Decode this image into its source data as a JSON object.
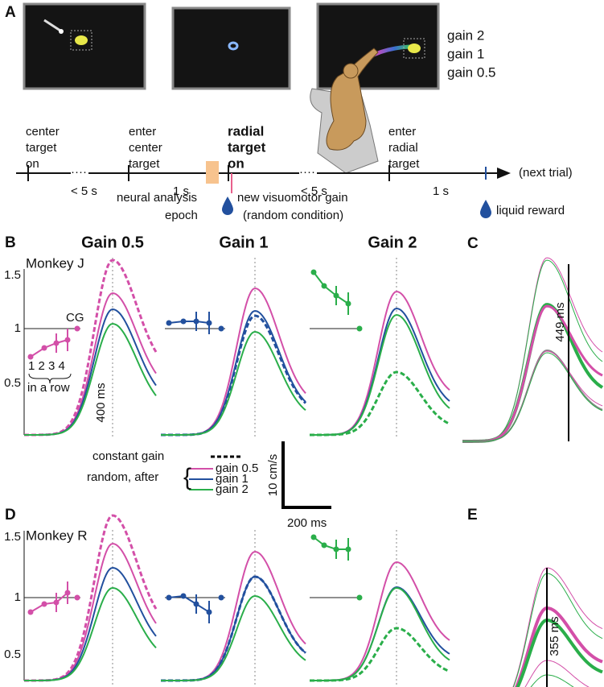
{
  "panel_a": {
    "label": "A",
    "legend": [
      "gain 2",
      "gain 1",
      "gain 0.5"
    ],
    "events": [
      {
        "lines": [
          "center",
          "target",
          "on"
        ]
      },
      {
        "lines": [
          "enter",
          "center",
          "target"
        ]
      },
      {
        "lines": [
          "radial",
          "target",
          "on"
        ]
      },
      {
        "lines": [
          "enter",
          "radial",
          "target"
        ]
      }
    ],
    "intervals": [
      "< 5 s",
      "1 s",
      "< 5 s",
      "1 s"
    ],
    "next_trial": "(next trial)",
    "neural_epoch": [
      "neural analysis",
      "epoch"
    ],
    "new_gain": [
      "new visuomotor gain",
      "(random condition)"
    ],
    "reward": "liquid reward"
  },
  "panel_b": {
    "label": "B",
    "monkey": "Monkey J",
    "titles": [
      "Gain 0.5",
      "Gain 1",
      "Gain 2"
    ],
    "yticks": [
      "1.5",
      "1",
      "0.5"
    ],
    "cg": "CG",
    "trial_numbers": "1 2 3 4",
    "in_a_row": "in a row",
    "time_marker": "400 ms"
  },
  "legend": {
    "constant": "constant gain",
    "random": "random, after",
    "gains": [
      "gain 0.5",
      "gain 1",
      "gain 2"
    ],
    "scale_y": "10 cm/s",
    "scale_x": "200 ms"
  },
  "panel_c": {
    "label": "C",
    "latency": "449 ms"
  },
  "panel_d": {
    "label": "D",
    "monkey": "Monkey R",
    "yticks": [
      "1.5",
      "1",
      "0.5"
    ]
  },
  "panel_e": {
    "label": "E",
    "latency": "355 ms"
  }
}
